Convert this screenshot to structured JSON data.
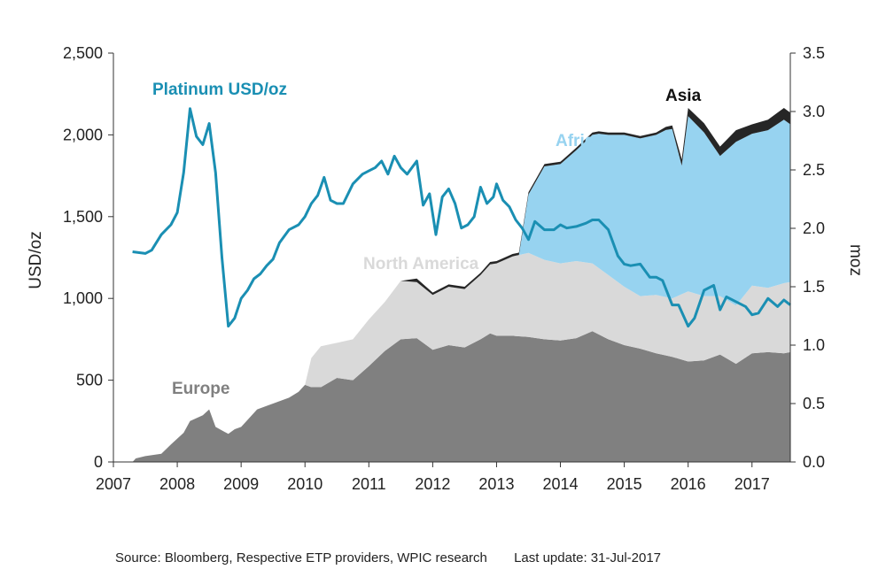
{
  "chart_data": {
    "type": "area",
    "x_unit": "year",
    "x_ticks": [
      "2007",
      "2008",
      "2009",
      "2010",
      "2011",
      "2012",
      "2013",
      "2014",
      "2015",
      "2016",
      "2017"
    ],
    "x_range": [
      2007.0,
      2017.6
    ],
    "left_axis": {
      "label": "USD/oz",
      "range": [
        0,
        2500
      ],
      "ticks": [
        "0",
        "500",
        "1,000",
        "1,500",
        "2,000",
        "2,500"
      ]
    },
    "right_axis": {
      "label": "moz",
      "range": [
        0,
        3.5
      ],
      "ticks": [
        "0.0",
        "0.5",
        "1.0",
        "1.5",
        "2.0",
        "2.5",
        "3.0",
        "3.5"
      ]
    },
    "grid": false,
    "stacked_area_series": [
      {
        "name": "Europe",
        "color": "#808080",
        "x": [
          2007.3,
          2007.35,
          2007.5,
          2007.75,
          2007.9,
          2008.1,
          2008.2,
          2008.4,
          2008.5,
          2008.6,
          2008.7,
          2008.8,
          2008.9,
          2009.0,
          2009.1,
          2009.25,
          2009.4,
          2009.5,
          2009.75,
          2009.9,
          2010.0,
          2010.1,
          2010.25,
          2010.5,
          2010.75,
          2011.0,
          2011.25,
          2011.5,
          2011.75,
          2012.0,
          2012.25,
          2012.5,
          2012.75,
          2012.9,
          2013.0,
          2013.25,
          2013.5,
          2013.75,
          2014.0,
          2014.25,
          2014.5,
          2014.75,
          2015.0,
          2015.25,
          2015.5,
          2015.75,
          2016.0,
          2016.25,
          2016.5,
          2016.75,
          2017.0,
          2017.25,
          2017.5,
          2017.6
        ],
        "values": [
          0.0,
          0.03,
          0.05,
          0.07,
          0.15,
          0.25,
          0.35,
          0.4,
          0.45,
          0.3,
          0.27,
          0.24,
          0.28,
          0.3,
          0.36,
          0.45,
          0.48,
          0.5,
          0.55,
          0.6,
          0.66,
          0.64,
          0.64,
          0.72,
          0.7,
          0.82,
          0.95,
          1.05,
          1.06,
          0.96,
          1.0,
          0.98,
          1.05,
          1.1,
          1.08,
          1.08,
          1.07,
          1.05,
          1.04,
          1.06,
          1.12,
          1.05,
          1.0,
          0.97,
          0.93,
          0.9,
          0.86,
          0.87,
          0.92,
          0.84,
          0.93,
          0.94,
          0.93,
          0.94
        ]
      },
      {
        "name": "North America",
        "color": "#d9d9d9",
        "x": [
          2007.3,
          2009.9,
          2010.0,
          2010.1,
          2010.25,
          2010.5,
          2010.75,
          2011.0,
          2011.25,
          2011.5,
          2011.75,
          2012.0,
          2012.25,
          2012.5,
          2012.75,
          2013.0,
          2013.25,
          2013.5,
          2013.75,
          2014.0,
          2014.25,
          2014.5,
          2014.75,
          2015.0,
          2015.25,
          2015.5,
          2015.75,
          2016.0,
          2016.25,
          2016.5,
          2016.75,
          2017.0,
          2017.25,
          2017.5,
          2017.6
        ],
        "values": [
          0.0,
          0.0,
          0.0,
          0.25,
          0.35,
          0.3,
          0.35,
          0.4,
          0.42,
          0.5,
          0.48,
          0.47,
          0.5,
          0.5,
          0.55,
          0.62,
          0.68,
          0.72,
          0.68,
          0.66,
          0.66,
          0.58,
          0.55,
          0.5,
          0.45,
          0.5,
          0.5,
          0.6,
          0.55,
          0.5,
          0.5,
          0.58,
          0.55,
          0.6,
          0.6
        ]
      },
      {
        "name": "Africa",
        "color": "#97d3f0",
        "x": [
          2007.3,
          2013.3,
          2013.35,
          2013.5,
          2013.75,
          2014.0,
          2014.25,
          2014.5,
          2014.6,
          2014.75,
          2015.0,
          2015.25,
          2015.5,
          2015.65,
          2015.75,
          2015.9,
          2016.0,
          2016.25,
          2016.5,
          2016.75,
          2017.0,
          2017.25,
          2017.5,
          2017.6
        ],
        "values": [
          0.0,
          0.0,
          0.0,
          0.5,
          0.8,
          0.85,
          0.95,
          1.1,
          1.15,
          1.2,
          1.3,
          1.35,
          1.37,
          1.43,
          1.45,
          1.1,
          1.5,
          1.4,
          1.2,
          1.4,
          1.3,
          1.35,
          1.4,
          1.35
        ]
      },
      {
        "name": "Asia",
        "color": "#262626",
        "x": [
          2007.3,
          2011.5,
          2011.75,
          2012.0,
          2012.25,
          2012.5,
          2012.75,
          2013.0,
          2013.25,
          2013.5,
          2013.75,
          2014.0,
          2014.25,
          2014.5,
          2014.75,
          2015.0,
          2015.25,
          2015.5,
          2015.75,
          2016.0,
          2016.25,
          2016.5,
          2016.75,
          2017.0,
          2017.25,
          2017.5,
          2017.6
        ],
        "values": [
          0.0,
          0.0,
          0.03,
          0.02,
          0.02,
          0.02,
          0.02,
          0.02,
          0.02,
          0.02,
          0.02,
          0.02,
          0.02,
          0.02,
          0.02,
          0.02,
          0.02,
          0.02,
          0.03,
          0.07,
          0.08,
          0.08,
          0.1,
          0.08,
          0.09,
          0.1,
          0.1
        ]
      }
    ],
    "line_series": {
      "name": "Platinum USD/oz",
      "color": "#1a8fb3",
      "axis": "left",
      "x": [
        2007.3,
        2007.5,
        2007.6,
        2007.75,
        2007.9,
        2008.0,
        2008.1,
        2008.2,
        2008.3,
        2008.4,
        2008.5,
        2008.6,
        2008.7,
        2008.8,
        2008.9,
        2009.0,
        2009.1,
        2009.2,
        2009.3,
        2009.4,
        2009.5,
        2009.6,
        2009.75,
        2009.9,
        2010.0,
        2010.1,
        2010.2,
        2010.3,
        2010.4,
        2010.5,
        2010.6,
        2010.75,
        2010.9,
        2011.0,
        2011.1,
        2011.2,
        2011.3,
        2011.4,
        2011.5,
        2011.6,
        2011.75,
        2011.85,
        2011.95,
        2012.05,
        2012.15,
        2012.25,
        2012.35,
        2012.45,
        2012.55,
        2012.65,
        2012.75,
        2012.85,
        2012.95,
        2013.0,
        2013.1,
        2013.2,
        2013.3,
        2013.4,
        2013.5,
        2013.6,
        2013.75,
        2013.9,
        2014.0,
        2014.1,
        2014.25,
        2014.4,
        2014.5,
        2014.6,
        2014.75,
        2014.9,
        2015.0,
        2015.1,
        2015.25,
        2015.4,
        2015.5,
        2015.6,
        2015.75,
        2015.85,
        2016.0,
        2016.1,
        2016.25,
        2016.4,
        2016.5,
        2016.6,
        2016.75,
        2016.9,
        2017.0,
        2017.1,
        2017.25,
        2017.4,
        2017.5,
        2017.6
      ],
      "values": [
        1285,
        1275,
        1295,
        1390,
        1450,
        1525,
        1770,
        2160,
        1990,
        1940,
        2070,
        1770,
        1250,
        830,
        880,
        1000,
        1050,
        1120,
        1150,
        1200,
        1240,
        1340,
        1420,
        1450,
        1500,
        1580,
        1630,
        1740,
        1600,
        1580,
        1580,
        1700,
        1760,
        1780,
        1800,
        1840,
        1760,
        1870,
        1800,
        1760,
        1840,
        1570,
        1640,
        1390,
        1620,
        1670,
        1580,
        1430,
        1450,
        1500,
        1680,
        1580,
        1620,
        1700,
        1600,
        1560,
        1480,
        1430,
        1360,
        1470,
        1420,
        1420,
        1450,
        1430,
        1440,
        1460,
        1480,
        1480,
        1420,
        1260,
        1210,
        1200,
        1210,
        1130,
        1130,
        1110,
        960,
        960,
        830,
        880,
        1050,
        1080,
        930,
        1010,
        980,
        950,
        900,
        910,
        1000,
        950,
        990,
        960
      ]
    },
    "series_labels": [
      "Platinum USD/oz",
      "Asia",
      "Africa",
      "North America",
      "Europe"
    ],
    "footer": {
      "source": "Source: Bloomberg, Respective ETP providers, WPIC research",
      "update": "Last update: 31-Jul-2017"
    }
  }
}
